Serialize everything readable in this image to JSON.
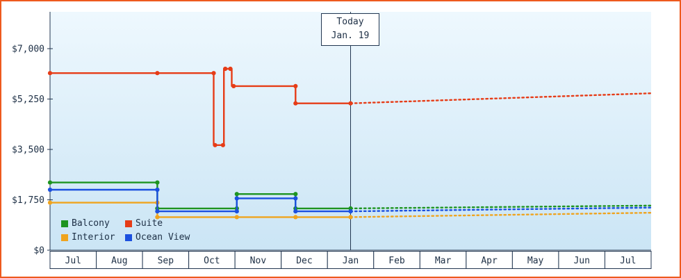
{
  "theme": {
    "frame_border": "#ee5a1e",
    "axis_color": "#223650",
    "text_color": "#1d2f45",
    "today_line_color": "#223650",
    "plot_gradient_top": "#eef8fe",
    "plot_gradient_bottom": "#cbe5f5",
    "box_fill": "#ffffff"
  },
  "chart_data": {
    "type": "line",
    "x_axis": {
      "months": [
        "Jul",
        "Aug",
        "Sep",
        "Oct",
        "Nov",
        "Dec",
        "Jan",
        "Feb",
        "Mar",
        "Apr",
        "May",
        "Jun",
        "Jul"
      ]
    },
    "y_axis": {
      "ticks": [
        {
          "label": "$0",
          "value": 0
        },
        {
          "label": "$1,750",
          "value": 1750
        },
        {
          "label": "$3,500",
          "value": 3500
        },
        {
          "label": "$5,250",
          "value": 5250
        },
        {
          "label": "$7,000",
          "value": 7000
        }
      ],
      "ylim": [
        0,
        8280
      ],
      "grid": false
    },
    "today": {
      "line1": "Today",
      "line2": "Jan. 19",
      "month_index": 6.5
    },
    "legend": {
      "position": "bottom-left",
      "labels": [
        "Balcony",
        "Suite",
        "Interior",
        "Ocean View"
      ]
    },
    "series": [
      {
        "name": "Balcony",
        "color": "#1e9421",
        "solid": [
          [
            0,
            2350
          ],
          [
            2.32,
            2350
          ],
          [
            2.32,
            1450
          ],
          [
            4.04,
            1450
          ],
          [
            4.04,
            1950
          ],
          [
            5.31,
            1950
          ],
          [
            5.31,
            1450
          ],
          [
            6.5,
            1450
          ]
        ],
        "dotted": [
          [
            6.5,
            1450
          ],
          [
            13,
            1550
          ]
        ],
        "markers": [
          [
            0,
            2350
          ],
          [
            2.32,
            2350
          ],
          [
            2.32,
            1450
          ],
          [
            4.04,
            1450
          ],
          [
            4.04,
            1950
          ],
          [
            5.31,
            1950
          ],
          [
            5.31,
            1450
          ],
          [
            6.5,
            1450
          ]
        ]
      },
      {
        "name": "Suite",
        "color": "#e63c17",
        "solid": [
          [
            0,
            6150
          ],
          [
            3.54,
            6150
          ],
          [
            3.54,
            3650
          ],
          [
            3.76,
            3650
          ],
          [
            3.76,
            6300
          ],
          [
            3.93,
            6300
          ],
          [
            3.93,
            5700
          ],
          [
            5.31,
            5700
          ],
          [
            5.31,
            5100
          ],
          [
            6.5,
            5100
          ]
        ],
        "dotted": [
          [
            6.5,
            5100
          ],
          [
            13,
            5450
          ]
        ],
        "markers": [
          [
            0,
            6150
          ],
          [
            2.32,
            6150
          ],
          [
            3.54,
            6150
          ],
          [
            3.57,
            3650
          ],
          [
            3.74,
            3650
          ],
          [
            3.79,
            6300
          ],
          [
            3.9,
            6300
          ],
          [
            3.97,
            5700
          ],
          [
            5.31,
            5700
          ],
          [
            5.31,
            5100
          ],
          [
            6.5,
            5100
          ]
        ]
      },
      {
        "name": "Interior",
        "color": "#efa41f",
        "solid": [
          [
            0,
            1650
          ],
          [
            2.32,
            1650
          ],
          [
            2.32,
            1150
          ],
          [
            6.5,
            1150
          ]
        ],
        "dotted": [
          [
            6.5,
            1150
          ],
          [
            13,
            1300
          ]
        ],
        "markers": [
          [
            0,
            1650
          ],
          [
            2.32,
            1650
          ],
          [
            2.32,
            1150
          ],
          [
            4.04,
            1150
          ],
          [
            5.31,
            1150
          ],
          [
            6.5,
            1150
          ]
        ]
      },
      {
        "name": "Ocean View",
        "color": "#1b50df",
        "solid": [
          [
            0,
            2100
          ],
          [
            2.32,
            2100
          ],
          [
            2.32,
            1350
          ],
          [
            4.04,
            1350
          ],
          [
            4.04,
            1800
          ],
          [
            5.31,
            1800
          ],
          [
            5.31,
            1350
          ],
          [
            6.5,
            1350
          ]
        ],
        "dotted": [
          [
            6.5,
            1350
          ],
          [
            13,
            1480
          ]
        ],
        "markers": [
          [
            0,
            2100
          ],
          [
            2.32,
            2100
          ],
          [
            2.32,
            1350
          ],
          [
            4.04,
            1350
          ],
          [
            4.04,
            1800
          ],
          [
            5.31,
            1800
          ],
          [
            5.31,
            1350
          ],
          [
            6.5,
            1350
          ]
        ]
      }
    ]
  }
}
